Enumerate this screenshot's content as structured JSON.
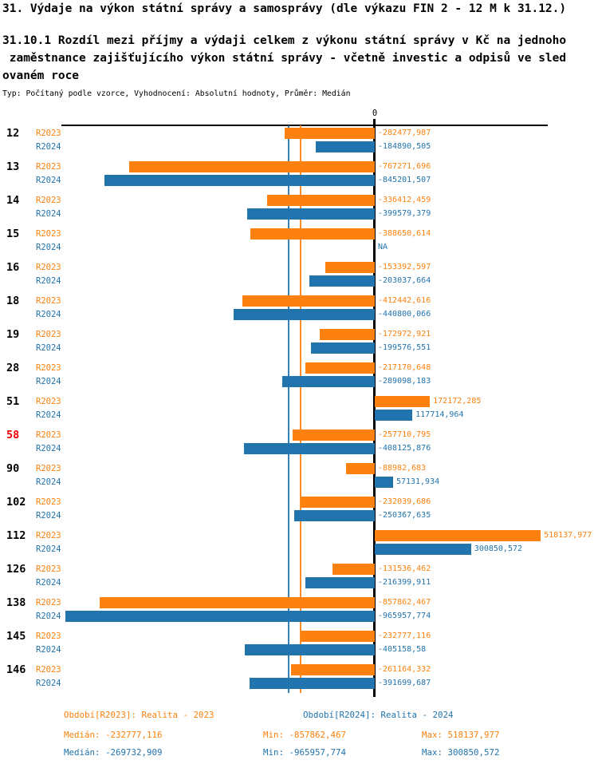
{
  "header": {
    "title": "31. Výdaje na výkon státní správy a samosprávy (dle výkazu FIN 2 - 12 M k 31.12.)",
    "subtitle_lines": [
      "31.10.1 Rozdíl mezi příjmy a výdaji celkem z výkonu státní správy v Kč na jednoho",
      " zaměstnance zajišťujícího výkon státní správy - včetně investic a odpisů ve sled",
      "ovaném roce"
    ],
    "meta_line": "Typ: Počítaný podle vzorce, Vyhodnocení: Absolutní hodnoty, Průměr: Medián"
  },
  "colors": {
    "r2023": "#fd810e",
    "r2024": "#2274ae",
    "highlight": "#ee0000",
    "axis": "#000000"
  },
  "chart_data": {
    "type": "bar",
    "orientation": "horizontal",
    "zero_tick_label": "0",
    "na_label": "NA",
    "series_names": [
      "R2023",
      "R2024"
    ],
    "highlighted_category": "58",
    "xlim": [
      -1170000,
      697000
    ],
    "rows": [
      {
        "category": "12",
        "R2023": "-282477,987",
        "R2024": "-184890,505"
      },
      {
        "category": "13",
        "R2023": "-767271,696",
        "R2024": "-845201,507"
      },
      {
        "category": "14",
        "R2023": "-336412,459",
        "R2024": "-399579,379"
      },
      {
        "category": "15",
        "R2023": "-388650,614",
        "R2024": "NA"
      },
      {
        "category": "16",
        "R2023": "-153392,597",
        "R2024": "-203037,664"
      },
      {
        "category": "18",
        "R2023": "-412442,616",
        "R2024": "-440800,066"
      },
      {
        "category": "19",
        "R2023": "-172972,921",
        "R2024": "-199576,551"
      },
      {
        "category": "28",
        "R2023": "-217170,648",
        "R2024": "-289098,183"
      },
      {
        "category": "51",
        "R2023": "172172,285",
        "R2024": "117714,964"
      },
      {
        "category": "58",
        "R2023": "-257710,795",
        "R2024": "-408125,876",
        "highlight": true
      },
      {
        "category": "90",
        "R2023": "-88982,683",
        "R2024": "57131,934"
      },
      {
        "category": "102",
        "R2023": "-232039,686",
        "R2024": "-250367,635"
      },
      {
        "category": "112",
        "R2023": "518137,977",
        "R2024": "300850,572"
      },
      {
        "category": "126",
        "R2023": "-131536,462",
        "R2024": "-216399,911"
      },
      {
        "category": "138",
        "R2023": "-857862,467",
        "R2024": "-965957,774"
      },
      {
        "category": "145",
        "R2023": "-232777,116",
        "R2024": "-405158,58"
      },
      {
        "category": "146",
        "R2023": "-261164,332",
        "R2024": "-391699,687"
      }
    ],
    "medians": {
      "R2023": "-232777,116",
      "R2024": "-269732,909"
    }
  },
  "footer": {
    "periods": [
      {
        "series": "R2023",
        "label": "Období[R2023]: Realita - 2023"
      },
      {
        "series": "R2024",
        "label": "Období[R2024]: Realita - 2024"
      }
    ],
    "stats": [
      {
        "series": "R2023",
        "median": "Medián: -232777,116",
        "min": "Min: -857862,467",
        "max": "Max: 518137,977"
      },
      {
        "series": "R2024",
        "median": "Medián: -269732,909",
        "min": "Min: -965957,774",
        "max": "Max: 300850,572"
      }
    ]
  }
}
